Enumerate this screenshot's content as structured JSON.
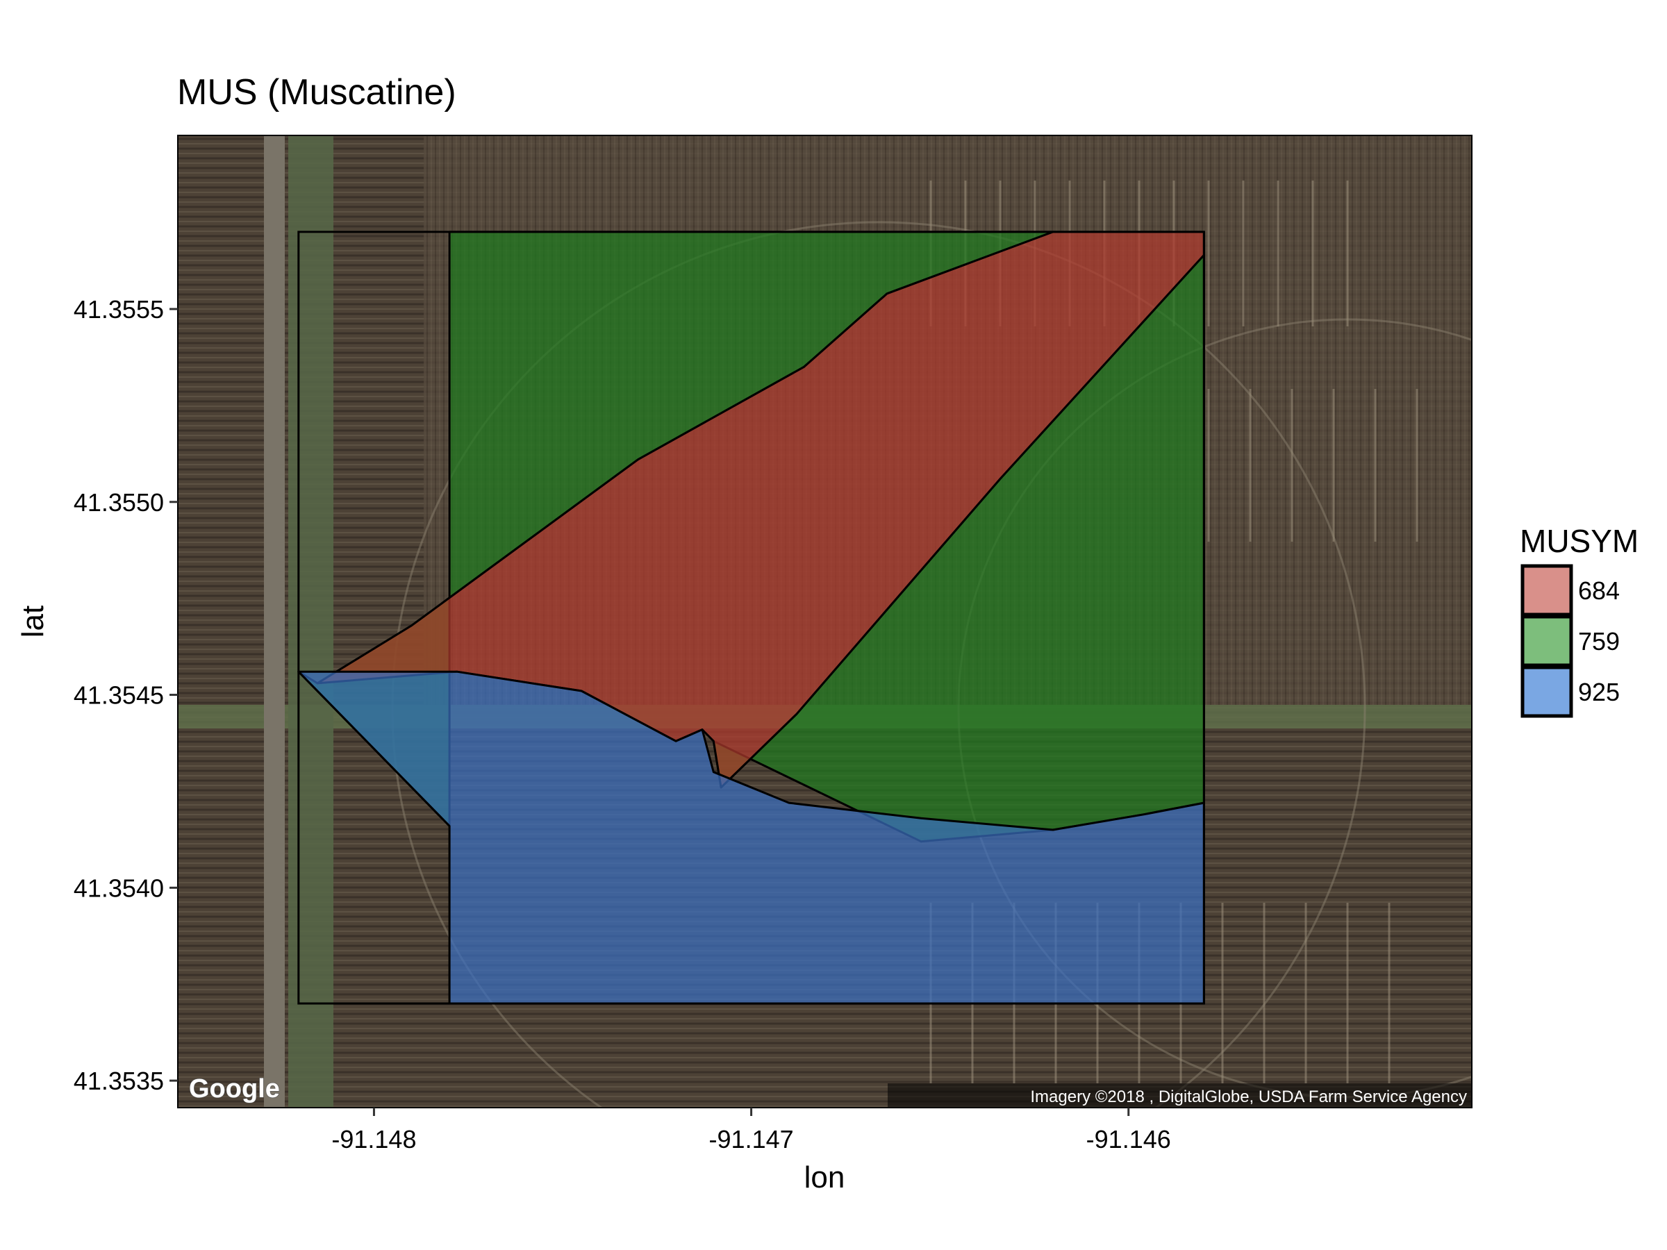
{
  "title": "MUS (Muscatine)",
  "x_axis": {
    "label": "lon",
    "ticks": [
      "-91.148",
      "-91.147",
      "-91.146"
    ],
    "tick_values": [
      -91.148,
      -91.147,
      -91.146
    ],
    "range": [
      -91.14852,
      -91.14509
    ]
  },
  "y_axis": {
    "label": "lat",
    "ticks": [
      "41.3535",
      "41.3540",
      "41.3545",
      "41.3550",
      "41.3555"
    ],
    "tick_values": [
      41.3535,
      41.354,
      41.3545,
      41.355,
      41.3555
    ],
    "range": [
      41.35343,
      41.35595
    ]
  },
  "legend": {
    "title": "MUSYM",
    "position": "right",
    "items": [
      {
        "label": "684",
        "color": "#d9908a"
      },
      {
        "label": "759",
        "color": "#7dbe7c"
      },
      {
        "label": "925",
        "color": "#7aa7e3"
      }
    ]
  },
  "basemap": {
    "provider_logo": "Google",
    "attribution": "Imagery ©2018 , DigitalGlobe, USDA Farm Service Agency"
  },
  "chart_data": {
    "type": "map",
    "grid": false,
    "layers": [
      {
        "musym": "759",
        "fill": "#1f7a1f",
        "opacity": 0.72,
        "polygon": [
          [
            -91.1478,
            41.3557
          ],
          [
            -91.1462,
            41.3557
          ],
          [
            -91.14664,
            41.35554
          ],
          [
            -91.14686,
            41.35535
          ],
          [
            -91.1473,
            41.35511
          ],
          [
            -91.1479,
            41.35468
          ],
          [
            -91.14815,
            41.35453
          ],
          [
            -91.1482,
            41.35456
          ],
          [
            -91.1478,
            41.35416
          ],
          [
            -91.1478,
            41.3557
          ]
        ]
      },
      {
        "musym": "759",
        "fill": "#1f7a1f",
        "opacity": 0.72,
        "polygon": [
          [
            -91.1458,
            41.35564
          ],
          [
            -91.14634,
            41.35506
          ],
          [
            -91.14688,
            41.35445
          ],
          [
            -91.14708,
            41.35426
          ],
          [
            -91.1471,
            41.35438
          ],
          [
            -91.14655,
            41.35412
          ],
          [
            -91.1462,
            41.35415
          ],
          [
            -91.14596,
            41.35419
          ],
          [
            -91.1458,
            41.35422
          ],
          [
            -91.1458,
            41.35564
          ]
        ]
      },
      {
        "musym": "684",
        "fill": "#b03a2e",
        "opacity": 0.72,
        "polygon": [
          [
            -91.1462,
            41.3557
          ],
          [
            -91.1458,
            41.3557
          ],
          [
            -91.1458,
            41.35564
          ],
          [
            -91.14634,
            41.35506
          ],
          [
            -91.14688,
            41.35445
          ],
          [
            -91.14708,
            41.35426
          ],
          [
            -91.1471,
            41.35438
          ],
          [
            -91.14713,
            41.35441
          ],
          [
            -91.1472,
            41.35438
          ],
          [
            -91.14745,
            41.35451
          ],
          [
            -91.14778,
            41.35456
          ],
          [
            -91.14815,
            41.35453
          ],
          [
            -91.1479,
            41.35468
          ],
          [
            -91.1473,
            41.35511
          ],
          [
            -91.14686,
            41.35535
          ],
          [
            -91.14664,
            41.35554
          ]
        ]
      },
      {
        "musym": "925",
        "fill": "#3a6fc0",
        "opacity": 0.72,
        "polygon": [
          [
            -91.1478,
            41.35416
          ],
          [
            -91.1482,
            41.35456
          ],
          [
            -91.14778,
            41.35456
          ],
          [
            -91.14745,
            41.35451
          ],
          [
            -91.1472,
            41.35438
          ],
          [
            -91.14713,
            41.35441
          ],
          [
            -91.1471,
            41.3543
          ],
          [
            -91.1469,
            41.35422
          ],
          [
            -91.14655,
            41.35418
          ],
          [
            -91.1462,
            41.35415
          ],
          [
            -91.14596,
            41.35419
          ],
          [
            -91.1458,
            41.35422
          ],
          [
            -91.1458,
            41.3537
          ],
          [
            -91.1478,
            41.3537
          ]
        ]
      }
    ]
  }
}
